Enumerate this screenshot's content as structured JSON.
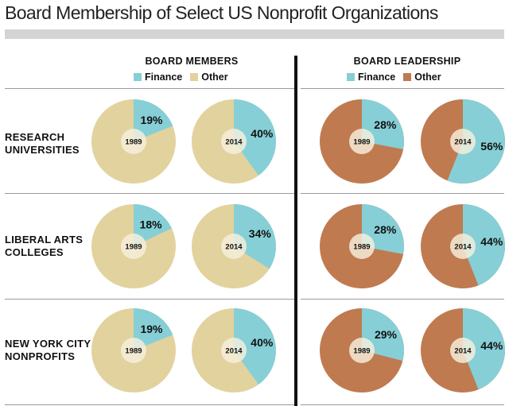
{
  "title": "Board Membership of Select US Nonprofit Organizations",
  "colors": {
    "finance": "#86cfd6",
    "other_members": "#e2d29e",
    "other_leadership": "#c07a50",
    "center": "#f6efdd"
  },
  "chart_data": {
    "type": "pie",
    "groups": [
      {
        "title": "BOARD MEMBERS",
        "legend": [
          "Finance",
          "Other"
        ]
      },
      {
        "title": "BOARD LEADERSHIP",
        "legend": [
          "Finance",
          "Other"
        ]
      }
    ],
    "rows": [
      {
        "label_lines": [
          "RESEARCH",
          "UNIVERSITIES"
        ],
        "pies": [
          {
            "group": 0,
            "year": "1989",
            "finance": 19,
            "label": "19%"
          },
          {
            "group": 0,
            "year": "2014",
            "finance": 40,
            "label": "40%"
          },
          {
            "group": 1,
            "year": "1989",
            "finance": 28,
            "label": "28%"
          },
          {
            "group": 1,
            "year": "2014",
            "finance": 56,
            "label": "56%"
          }
        ]
      },
      {
        "label_lines": [
          "LIBERAL ARTS",
          "COLLEGES"
        ],
        "pies": [
          {
            "group": 0,
            "year": "1989",
            "finance": 18,
            "label": "18%"
          },
          {
            "group": 0,
            "year": "2014",
            "finance": 34,
            "label": "34%"
          },
          {
            "group": 1,
            "year": "1989",
            "finance": 28,
            "label": "28%"
          },
          {
            "group": 1,
            "year": "2014",
            "finance": 44,
            "label": "44%"
          }
        ]
      },
      {
        "label_lines": [
          "NEW YORK CITY",
          "NONPROFITS"
        ],
        "pies": [
          {
            "group": 0,
            "year": "1989",
            "finance": 19,
            "label": "19%"
          },
          {
            "group": 0,
            "year": "2014",
            "finance": 40,
            "label": "40%"
          },
          {
            "group": 1,
            "year": "1989",
            "finance": 29,
            "label": "29%"
          },
          {
            "group": 1,
            "year": "2014",
            "finance": 44,
            "label": "44%"
          }
        ]
      }
    ]
  }
}
